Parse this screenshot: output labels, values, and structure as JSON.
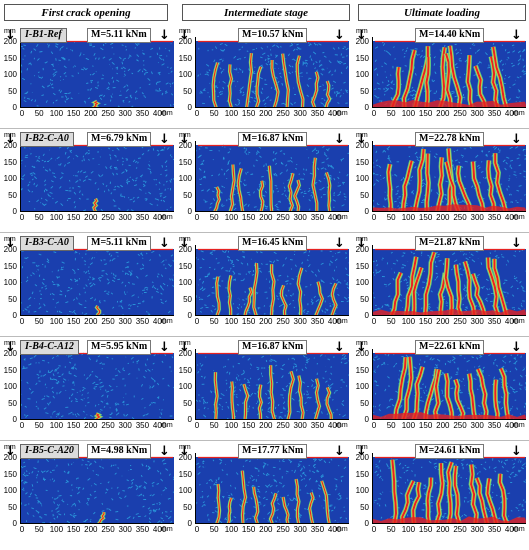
{
  "headers": [
    "First crack opening",
    "Intermediate stage",
    "Ultimate loading"
  ],
  "y_ticks": [
    "200",
    "150",
    "100",
    "50",
    "0"
  ],
  "x_ticks": [
    "0",
    "50",
    "100",
    "150",
    "200",
    "250",
    "300",
    "350",
    "400"
  ],
  "unit": "mm",
  "arrow_glyph": "↓",
  "rows": [
    {
      "specimen": "I-B1-Ref",
      "moments": [
        "M=5.11 kNm",
        "M=10.57 kNm",
        "M=14.40 kNm"
      ]
    },
    {
      "specimen": "I-B2-C-A0",
      "moments": [
        "M=6.79 kNm",
        "M=16.87 kNm",
        "M=22.78 kNm"
      ]
    },
    {
      "specimen": "I-B3-C-A0",
      "moments": [
        "M=5.11 kNm",
        "M=16.45 kNm",
        "M=21.87 kNm"
      ]
    },
    {
      "specimen": "I-B4-C-A12",
      "moments": [
        "M=5.95 kNm",
        "M=16.87 kNm",
        "M=22.61 kNm"
      ]
    },
    {
      "specimen": "I-B5-C-A20",
      "moments": [
        "M=4.98 kNm",
        "M=17.77 kNm",
        "M=24.61 kNm"
      ]
    }
  ],
  "colors": {
    "background": "#1a3fae",
    "speckle": "#2fb3e8",
    "mid": "#6fe07a",
    "crack": "#e52222",
    "yellow": "#f0e040"
  }
}
